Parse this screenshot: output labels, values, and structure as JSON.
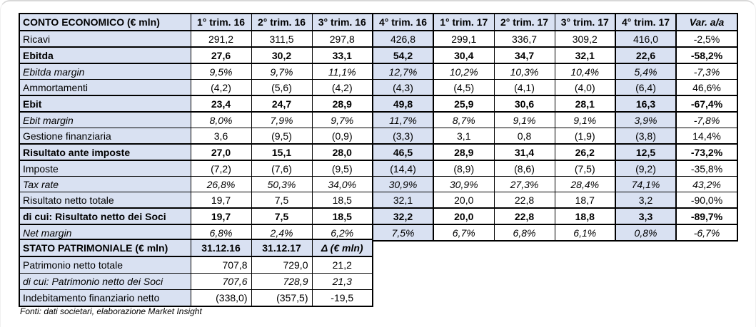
{
  "colors": {
    "accent_blue": "#d9e1f2",
    "table_border": "#000000",
    "frame_gray": "#d8d8d8"
  },
  "income_statement": {
    "title": "CONTO ECONOMICO (€ mln)",
    "columns": [
      "1° trim. 16",
      "2° trim. 16",
      "3° trim. 16",
      "4° trim. 16",
      "1° trim. 17",
      "2° trim. 17",
      "3° trim. 17",
      "4° trim. 17",
      "Var. a/a"
    ],
    "rows": [
      {
        "label": "Ricavi",
        "style": "normal",
        "values": [
          "291,2",
          "311,5",
          "297,8",
          "426,8",
          "299,1",
          "336,7",
          "309,2",
          "416,0"
        ],
        "var_yoy": "-2,5%"
      },
      {
        "label": "Ebitda",
        "style": "bold",
        "values": [
          "27,6",
          "30,2",
          "33,1",
          "54,2",
          "30,4",
          "34,7",
          "32,1",
          "22,6"
        ],
        "var_yoy": "-58,2%"
      },
      {
        "label": "Ebitda margin",
        "style": "italic",
        "values": [
          "9,5%",
          "9,7%",
          "11,1%",
          "12,7%",
          "10,2%",
          "10,3%",
          "10,4%",
          "5,4%"
        ],
        "var_yoy": "-7,3%"
      },
      {
        "label": "Ammortamenti",
        "style": "normal",
        "values": [
          "(4,2)",
          "(5,6)",
          "(4,2)",
          "(4,3)",
          "(4,5)",
          "(4,1)",
          "(4,0)",
          "(6,4)"
        ],
        "var_yoy": "46,6%"
      },
      {
        "label": "Ebit",
        "style": "bold",
        "values": [
          "23,4",
          "24,7",
          "28,9",
          "49,8",
          "25,9",
          "30,6",
          "28,1",
          "16,3"
        ],
        "var_yoy": "-67,4%"
      },
      {
        "label": "Ebit margin",
        "style": "italic",
        "values": [
          "8,0%",
          "7,9%",
          "9,7%",
          "11,7%",
          "8,7%",
          "9,1%",
          "9,1%",
          "3,9%"
        ],
        "var_yoy": "-7,8%"
      },
      {
        "label": "Gestione finanziaria",
        "style": "normal",
        "values": [
          "3,6",
          "(9,5)",
          "(0,9)",
          "(3,3)",
          "3,1",
          "0,8",
          "(1,9)",
          "(3,8)"
        ],
        "var_yoy": "14,4%"
      },
      {
        "label": "Risultato ante imposte",
        "style": "bold",
        "values": [
          "27,0",
          "15,1",
          "28,0",
          "46,5",
          "28,9",
          "31,4",
          "26,2",
          "12,5"
        ],
        "var_yoy": "-73,2%"
      },
      {
        "label": "Imposte",
        "style": "normal",
        "values": [
          "(7,2)",
          "(7,6)",
          "(9,5)",
          "(14,4)",
          "(8,9)",
          "(8,6)",
          "(7,5)",
          "(9,2)"
        ],
        "var_yoy": "-35,8%"
      },
      {
        "label": "Tax rate",
        "style": "italic",
        "values": [
          "26,8%",
          "50,3%",
          "34,0%",
          "30,9%",
          "30,9%",
          "27,3%",
          "28,4%",
          "74,1%"
        ],
        "var_yoy": "43,2%"
      },
      {
        "label": "Risultato netto totale",
        "style": "normal",
        "values": [
          "19,7",
          "7,5",
          "18,5",
          "32,1",
          "20,0",
          "22,8",
          "18,7",
          "3,2"
        ],
        "var_yoy": "-90,0%"
      },
      {
        "label": "di cui: Risultato netto dei Soci",
        "style": "bold",
        "values": [
          "19,7",
          "7,5",
          "18,5",
          "32,2",
          "20,0",
          "22,8",
          "18,8",
          "3,3"
        ],
        "var_yoy": "-89,7%"
      },
      {
        "label": "Net margin",
        "style": "italic",
        "values": [
          "6,8%",
          "2,4%",
          "6,2%",
          "7,5%",
          "6,7%",
          "6,8%",
          "6,1%",
          "0,8%"
        ],
        "var_yoy": "-6,7%"
      }
    ]
  },
  "balance_sheet": {
    "title": "STATO PATRIMONIALE (€ mln)",
    "columns": [
      "31.12.16",
      "31.12.17",
      "Δ (€ mln)"
    ],
    "rows": [
      {
        "label": "Patrimonio netto totale",
        "style": "normal",
        "values": [
          "707,8",
          "729,0"
        ],
        "delta": "21,2"
      },
      {
        "label": "di cui: Patrimonio netto dei Soci",
        "style": "italic",
        "values": [
          "707,6",
          "728,9"
        ],
        "delta": "21,3"
      },
      {
        "label": "Indebitamento finanziario netto",
        "style": "normal",
        "values": [
          "(338,0)",
          "(357,5)"
        ],
        "delta": "-19,5"
      }
    ]
  },
  "footer": {
    "source_note": "Fonti: dati societari, elaborazione Market Insight"
  }
}
